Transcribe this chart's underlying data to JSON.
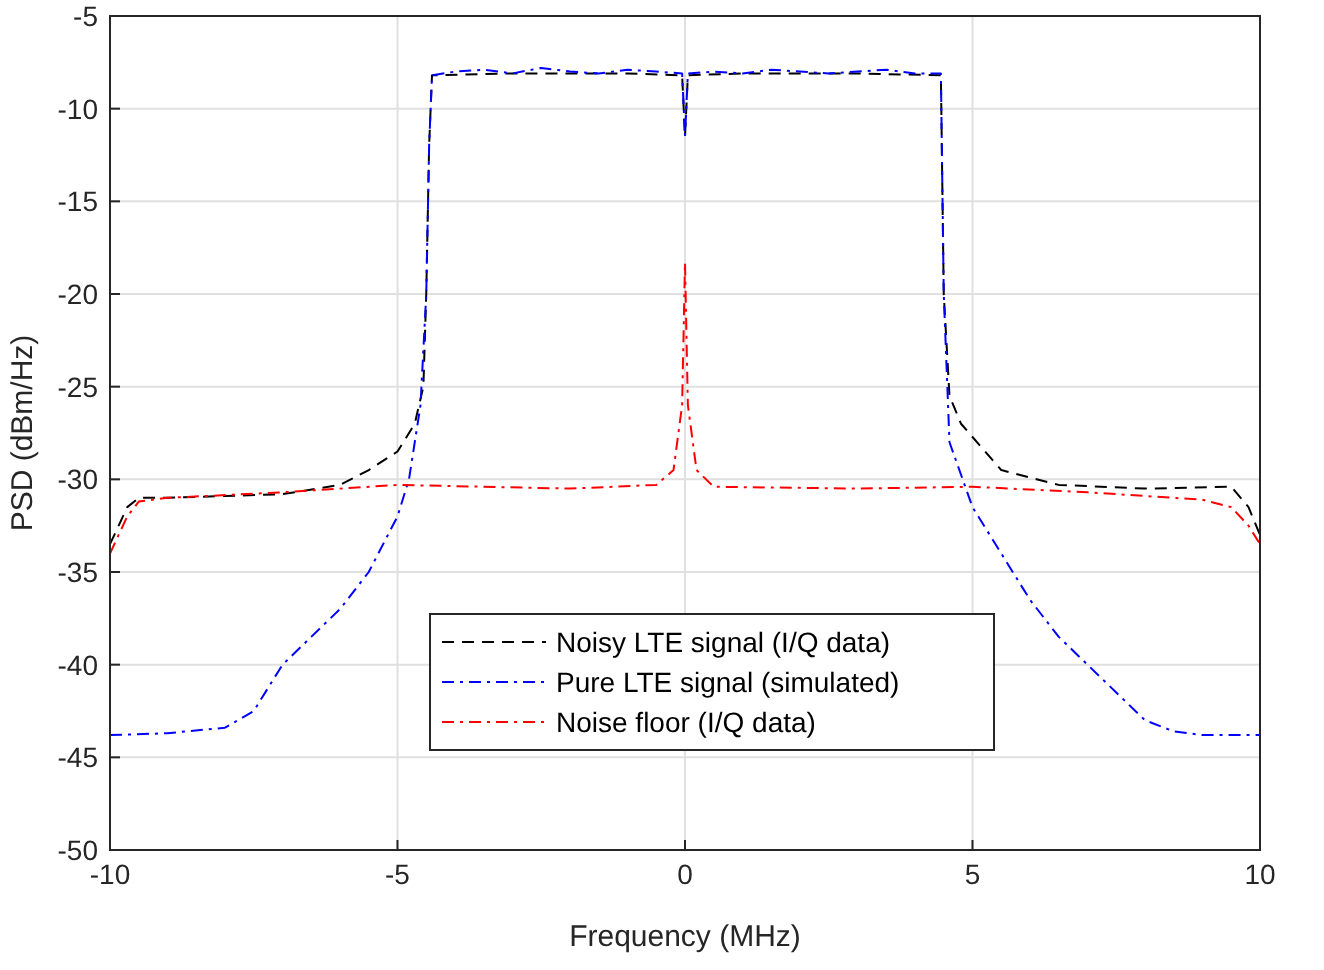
{
  "chart_data": {
    "type": "line",
    "xlabel": "Frequency (MHz)",
    "ylabel": "PSD (dBm/Hz)",
    "xlim": [
      -10,
      10
    ],
    "ylim": [
      -50,
      -5
    ],
    "xticks": [
      -10,
      -5,
      0,
      5,
      10
    ],
    "yticks": [
      -50,
      -45,
      -40,
      -35,
      -30,
      -25,
      -20,
      -15,
      -10,
      -5
    ],
    "grid": true,
    "legend": "bottom",
    "series": [
      {
        "name": "Noisy LTE signal (I/Q data)",
        "color": "#000000",
        "line_style": "dashed",
        "x": [
          -10,
          -9.7,
          -9.5,
          -9,
          -8,
          -7,
          -6,
          -5.5,
          -5,
          -4.7,
          -4.55,
          -4.5,
          -4.45,
          -4.4,
          -3,
          -1,
          -0.05,
          0,
          0.05,
          1,
          3,
          4.45,
          4.5,
          4.6,
          4.8,
          5.5,
          6.5,
          8,
          9.5,
          9.8,
          10
        ],
        "values": [
          -33.5,
          -31.5,
          -31,
          -31,
          -30.9,
          -30.8,
          -30.3,
          -29.5,
          -28.5,
          -27,
          -25,
          -20,
          -12,
          -8.2,
          -8.1,
          -8.1,
          -8.2,
          -11.5,
          -8.2,
          -8.1,
          -8.1,
          -8.2,
          -20,
          -25.5,
          -27,
          -29.5,
          -30.3,
          -30.5,
          -30.4,
          -31.5,
          -33
        ]
      },
      {
        "name": "Pure LTE signal (simulated)",
        "color": "#0000ff",
        "line_style": "dashdot",
        "x": [
          -10,
          -9,
          -8,
          -7.5,
          -7,
          -6.5,
          -6,
          -5.5,
          -5,
          -4.8,
          -4.6,
          -4.5,
          -4.45,
          -4.4,
          -4,
          -3.5,
          -3,
          -2.5,
          -2,
          -1.5,
          -1,
          -0.5,
          -0.05,
          0,
          0.05,
          0.5,
          1,
          1.5,
          2,
          2.5,
          3,
          3.5,
          4,
          4.45,
          4.5,
          4.6,
          5,
          5.5,
          6,
          6.5,
          7,
          7.5,
          8,
          8.5,
          9,
          10
        ],
        "values": [
          -43.8,
          -43.7,
          -43.4,
          -42.5,
          -40,
          -38.5,
          -37,
          -35,
          -32,
          -30,
          -26,
          -20,
          -12,
          -8.2,
          -8,
          -7.9,
          -8.1,
          -7.8,
          -8,
          -8.1,
          -7.9,
          -8,
          -8.1,
          -11.5,
          -8.1,
          -8,
          -8.1,
          -7.9,
          -8,
          -8.1,
          -8,
          -7.9,
          -8.1,
          -8.1,
          -20,
          -28,
          -31.5,
          -34,
          -36.5,
          -38.5,
          -40,
          -41.5,
          -43,
          -43.6,
          -43.8,
          -43.8
        ]
      },
      {
        "name": "Noise floor (I/Q data)",
        "color": "#ff0000",
        "line_style": "dashdot",
        "x": [
          -10,
          -9.7,
          -9.5,
          -9,
          -7,
          -5,
          -2,
          -0.5,
          -0.2,
          -0.05,
          0,
          0.05,
          0.2,
          0.5,
          3,
          5,
          7,
          9,
          9.5,
          9.8,
          10
        ],
        "values": [
          -34,
          -32,
          -31.2,
          -31,
          -30.7,
          -30.3,
          -30.5,
          -30.3,
          -29.5,
          -26,
          -18.3,
          -26,
          -29.5,
          -30.4,
          -30.5,
          -30.4,
          -30.7,
          -31.1,
          -31.5,
          -32.5,
          -33.5
        ]
      }
    ]
  }
}
